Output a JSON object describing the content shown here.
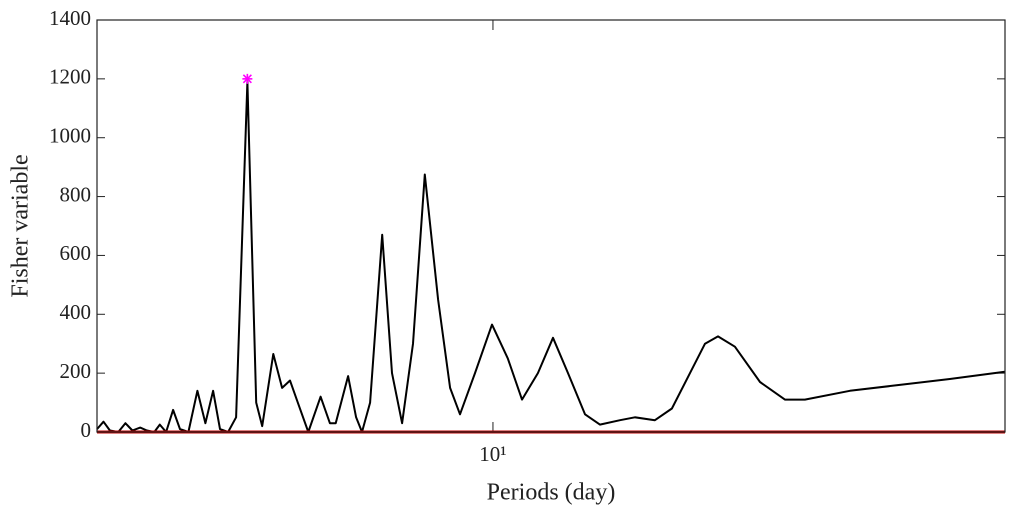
{
  "chart_data": {
    "type": "line",
    "xlabel": "Periods (day)",
    "ylabel": "Fisher variable",
    "xscale": "log",
    "xlim": [
      2.94,
      48.7
    ],
    "ylim": [
      0,
      1400
    ],
    "xticks": [
      {
        "value": 10,
        "label": "10¹"
      }
    ],
    "yticks": [
      0,
      200,
      400,
      600,
      800,
      1000,
      1200,
      1400
    ],
    "x": [
      2.94,
      3.0,
      3.06,
      3.14,
      3.21,
      3.28,
      3.36,
      3.43,
      3.51,
      3.57,
      3.64,
      3.72,
      3.8,
      3.9,
      4.01,
      4.11,
      4.21,
      4.3,
      4.41,
      4.52,
      4.68,
      4.81,
      4.9,
      5.07,
      5.21,
      5.34,
      5.47,
      5.65,
      5.87,
      6.04,
      6.15,
      6.39,
      6.55,
      6.67,
      6.84,
      7.1,
      7.32,
      7.55,
      7.81,
      8.1,
      8.44,
      8.76,
      9.03,
      9.46,
      9.97,
      10.47,
      10.94,
      11.49,
      12.04,
      12.61,
      13.29,
      13.92,
      14.81,
      15.51,
      16.5,
      17.39,
      18.39,
      19.26,
      20.05,
      21.13,
      22.83,
      24.66,
      26.23,
      30.15,
      35.18,
      41.06,
      48.67
    ],
    "series": [
      {
        "color": "#000000",
        "values": [
          10,
          35,
          5,
          0,
          30,
          5,
          15,
          5,
          0,
          25,
          0,
          75,
          10,
          0,
          140,
          30,
          140,
          10,
          0,
          50,
          1190,
          100,
          20,
          265,
          150,
          175,
          100,
          0,
          120,
          30,
          30,
          190,
          50,
          0,
          100,
          670,
          200,
          30,
          300,
          875,
          450,
          150,
          60,
          200,
          365,
          250,
          110,
          200,
          320,
          200,
          60,
          25,
          40,
          50,
          40,
          80,
          200,
          300,
          325,
          290,
          170,
          110,
          110,
          140,
          160,
          180,
          205
        ]
      }
    ],
    "threshold": {
      "value": 0,
      "color": "#c00000"
    },
    "peak": {
      "x": 4.68,
      "y": 1200,
      "color": "#ff00ff"
    }
  }
}
